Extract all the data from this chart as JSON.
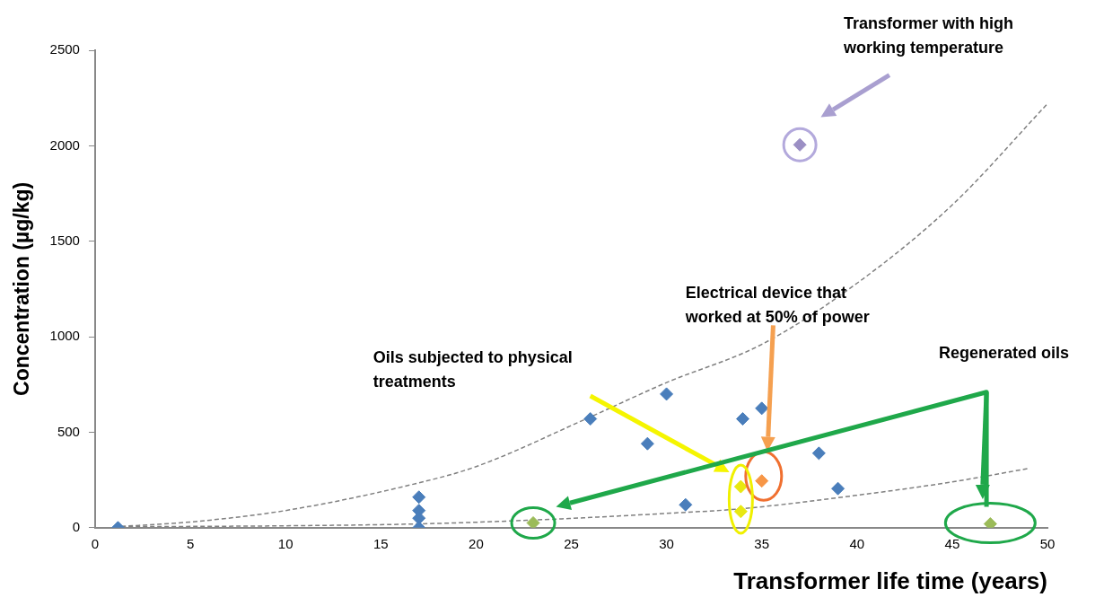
{
  "chart_data": {
    "type": "scatter",
    "xlabel": "Transformer life time (years)",
    "ylabel": "Concentration (µg/kg)",
    "xlim": [
      0,
      50
    ],
    "xticks": [
      0,
      5,
      10,
      15,
      20,
      25,
      30,
      35,
      40,
      45,
      50
    ],
    "ylim": [
      0,
      2500
    ],
    "yticks": [
      0,
      500,
      1000,
      1500,
      2000,
      2500
    ],
    "grid": false,
    "legend": false,
    "marker": "diamond",
    "series": [
      {
        "color": "#4a7ebb",
        "x": [
          1.2,
          17,
          17,
          17,
          17,
          26,
          29,
          30,
          31,
          34,
          35,
          38,
          39
        ],
        "values": [
          0,
          160,
          90,
          50,
          0,
          570,
          440,
          700,
          120,
          570,
          625,
          390,
          205
        ]
      },
      {
        "color": "#e8e810",
        "x": [
          33.9,
          33.9
        ],
        "values": [
          215,
          85
        ]
      },
      {
        "color": "#f79646",
        "x": [
          35
        ],
        "values": [
          245
        ]
      },
      {
        "color": "#9b8fc4",
        "x": [
          37
        ],
        "values": [
          2005
        ]
      },
      {
        "color": "#9bbb59",
        "x": [
          23,
          47
        ],
        "values": [
          25,
          20
        ]
      },
      {
        "type": "line",
        "color": "#808080",
        "line_style": "dashed",
        "marker": "none",
        "x": [
          1,
          5,
          10,
          17,
          20,
          26,
          30,
          35,
          40,
          45,
          50
        ],
        "values": [
          5,
          30,
          90,
          235,
          320,
          580,
          760,
          960,
          1280,
          1690,
          2220
        ]
      },
      {
        "type": "line",
        "color": "#808080",
        "line_style": "dashed",
        "marker": "none",
        "x": [
          1,
          10,
          17,
          23,
          30,
          34,
          40,
          45,
          49
        ],
        "values": [
          5,
          10,
          20,
          40,
          75,
          100,
          170,
          240,
          310
        ]
      }
    ],
    "annotations": [
      "Transformer with high working temperature",
      "Electrical device that worked at 50% of power",
      "Oils subjected to physical treatments",
      "Regenerated oils"
    ]
  }
}
